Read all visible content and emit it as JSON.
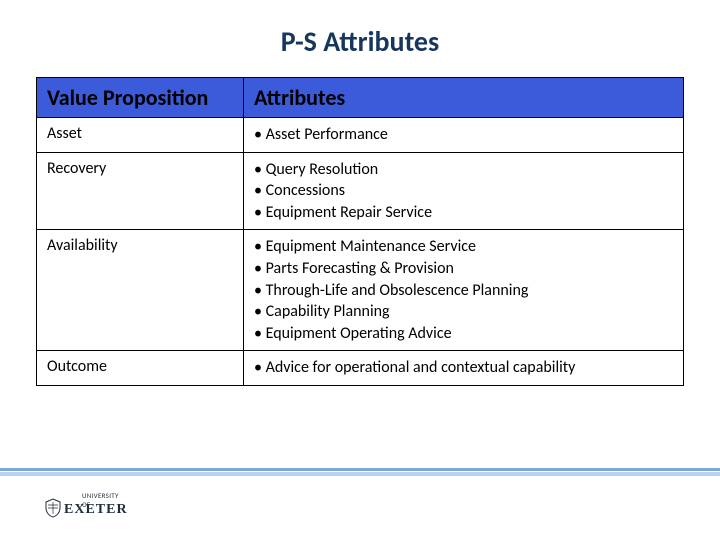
{
  "title": "P-S Attributes",
  "table": {
    "header_bg": "#3b5bdb",
    "border_color": "#000000",
    "columns": [
      "Value Proposition",
      "Attributes"
    ],
    "col_widths_pct": [
      32,
      68
    ],
    "header_fontsize": 22,
    "cell_fontsize": 16,
    "rows": [
      {
        "vp": "Asset",
        "attrs": [
          "Asset Performance"
        ]
      },
      {
        "vp": "Recovery",
        "attrs": [
          "Query Resolution",
          "Concessions",
          "Equipment Repair Service"
        ]
      },
      {
        "vp": "Availability",
        "attrs": [
          "Equipment Maintenance Service",
          "Parts Forecasting & Provision",
          "Through-Life and Obsolescence Planning",
          "Capability Planning",
          "Equipment Operating  Advice"
        ]
      },
      {
        "vp": "Outcome",
        "attrs": [
          "Advice for operational and contextual capability"
        ]
      }
    ]
  },
  "footer": {
    "band_top_color": "#7fa8d9",
    "band_bottom_color": "#b9d2ec",
    "logo_pretext": "UNIVERSITY OF",
    "logo_text": "EXETER",
    "logo_color": "#1f2d3d"
  },
  "colors": {
    "title_color": "#17365d",
    "background": "#ffffff"
  }
}
